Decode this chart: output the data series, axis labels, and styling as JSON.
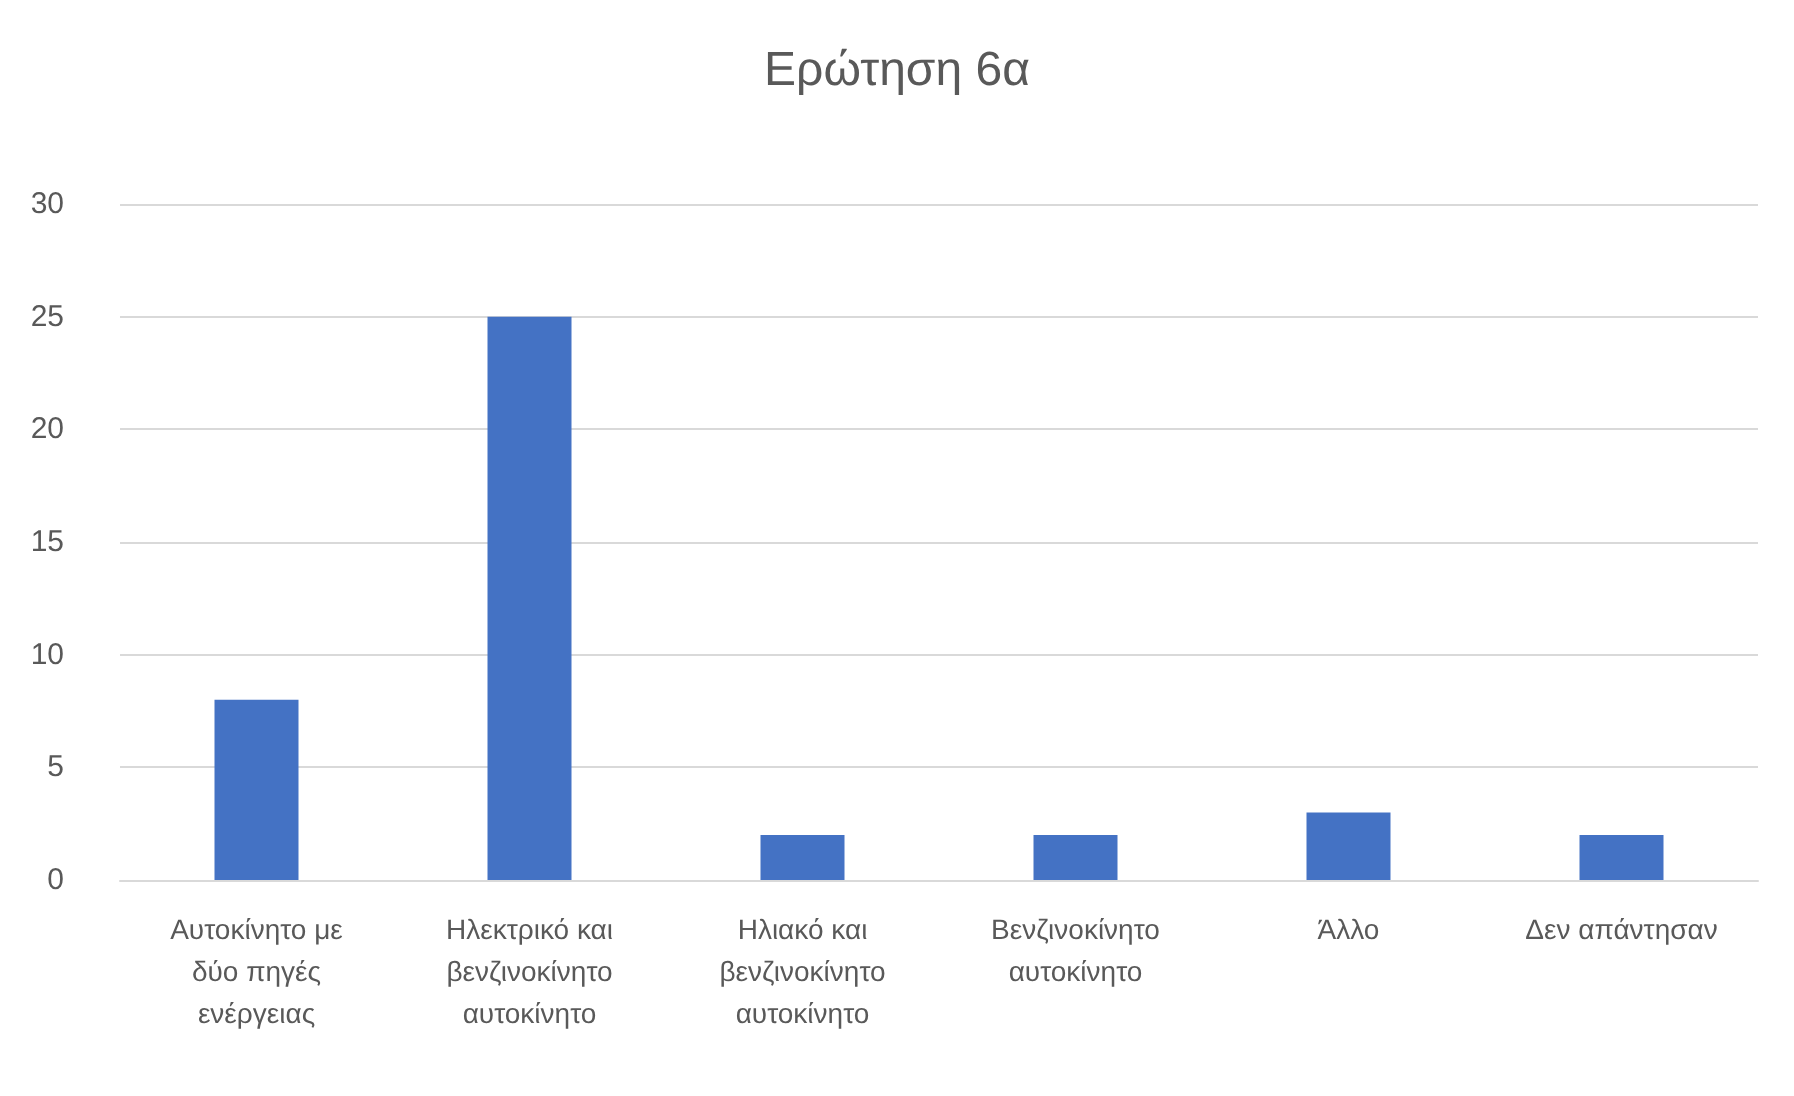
{
  "chart_data": {
    "type": "bar",
    "title": "Ερώτηση 6α",
    "categories": [
      "Αυτοκίνητο με δύο πηγές ενέργειας",
      "Ηλεκτρικό και βενζινοκίνητο αυτοκίνητο",
      "Ηλιακό και βενζινοκίνητο αυτοκίνητο",
      "Βενζινοκίνητο αυτοκίνητο",
      "Άλλο",
      "Δεν απάντησαν"
    ],
    "values": [
      8,
      25,
      2,
      2,
      3,
      2
    ],
    "color": "#4472c4",
    "ylim": [
      0,
      30
    ],
    "yticks": [
      0,
      5,
      10,
      15,
      20,
      25,
      30
    ],
    "grid": "y"
  }
}
